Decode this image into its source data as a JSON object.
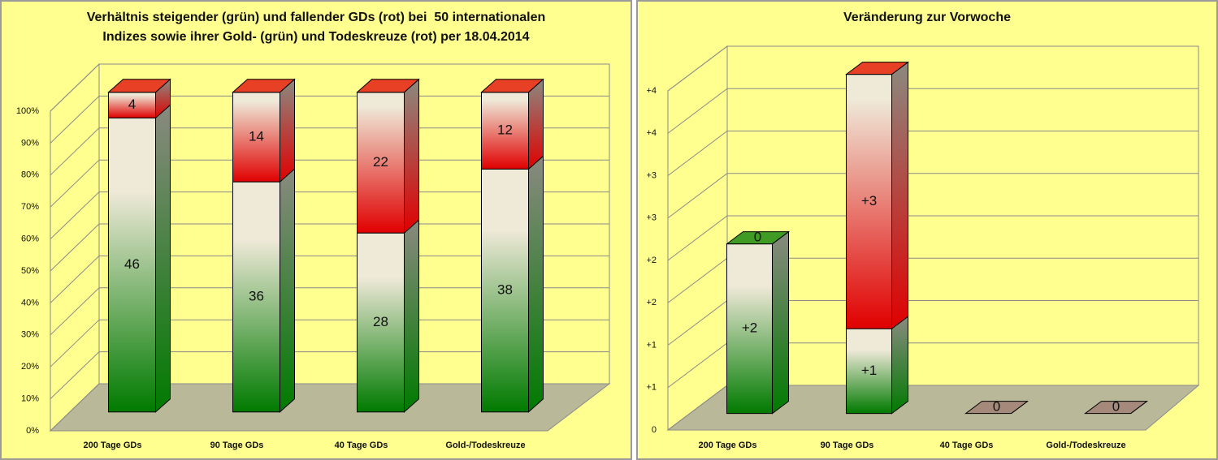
{
  "chart_data": [
    {
      "type": "bar",
      "stacked": true,
      "title": [
        "Verhältnis steigender (grün) und fallender GDs (rot) bei  50 internationalen",
        "Indizes sowie ihrer Gold- (grün) und Todeskreuze (rot) per 18.04.2014"
      ],
      "categories": [
        "200 Tage GDs",
        "90 Tage GDs",
        "40 Tage GDs",
        "Gold-/Todeskreuze"
      ],
      "series": [
        {
          "color": "#007a00",
          "values": [
            46,
            36,
            28,
            38
          ]
        },
        {
          "color": "#e00000",
          "values": [
            4,
            14,
            22,
            12
          ]
        }
      ],
      "ylim": [
        0,
        50
      ],
      "yticks": [
        {
          "value": 0,
          "label": "0%"
        },
        {
          "value": 5,
          "label": "10%"
        },
        {
          "value": 10,
          "label": "20%"
        },
        {
          "value": 15,
          "label": "30%"
        },
        {
          "value": 20,
          "label": "40%"
        },
        {
          "value": 25,
          "label": "50%"
        },
        {
          "value": 30,
          "label": "60%"
        },
        {
          "value": 35,
          "label": "70%"
        },
        {
          "value": 40,
          "label": "80%"
        },
        {
          "value": 45,
          "label": "90%"
        },
        {
          "value": 50,
          "label": "100%"
        }
      ],
      "grid": true
    },
    {
      "type": "bar",
      "stacked": true,
      "title": [
        "Veränderung zur Vorwoche"
      ],
      "categories": [
        "200 Tage GDs",
        "90 Tage GDs",
        "40 Tage GDs",
        "Gold-/Todeskreuze"
      ],
      "series": [
        {
          "color": "#007a00",
          "values": [
            2,
            1,
            0,
            0
          ],
          "value_labels": [
            "+2",
            "+1",
            null,
            null
          ]
        },
        {
          "color": "#e00000",
          "values": [
            0,
            3,
            0,
            0
          ],
          "value_labels": [
            "0",
            "+3",
            "0",
            "0"
          ]
        }
      ],
      "ylim": [
        0,
        4
      ],
      "yticks": [
        0,
        {
          "value": 0.5,
          "label": "+1"
        },
        {
          "value": 1,
          "label": "+1"
        },
        {
          "value": 1.5,
          "label": "+2"
        },
        {
          "value": 2,
          "label": "+2"
        },
        {
          "value": 2.5,
          "label": "+3"
        },
        {
          "value": 3,
          "label": "+3"
        },
        {
          "value": 3.5,
          "label": "+4"
        },
        {
          "value": 4,
          "label": "+4"
        }
      ],
      "grid": true
    }
  ]
}
